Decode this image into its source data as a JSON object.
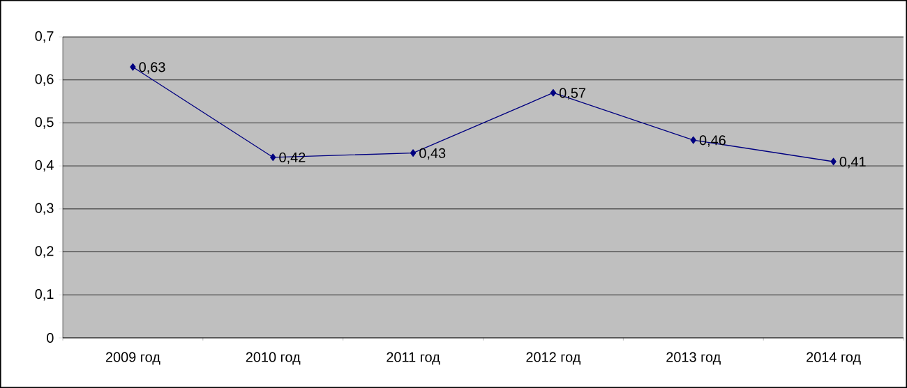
{
  "chart_data": {
    "type": "line",
    "categories": [
      "2009 год",
      "2010 год",
      "2011 год",
      "2012 год",
      "2013 год",
      "2014 год"
    ],
    "values": [
      0.63,
      0.42,
      0.43,
      0.57,
      0.46,
      0.41
    ],
    "value_labels": [
      "0,63",
      "0,42",
      "0,43",
      "0,57",
      "0,46",
      "0,41"
    ],
    "color": "#000080",
    "marker": "diamond",
    "line_style": "solid",
    "ylim": [
      0,
      0.7
    ],
    "yticks": [
      {
        "value": 0,
        "label": "0"
      },
      {
        "value": 0.1,
        "label": "0,1"
      },
      {
        "value": 0.2,
        "label": "0,2"
      },
      {
        "value": 0.3,
        "label": "0,3"
      },
      {
        "value": 0.4,
        "label": "0,4"
      },
      {
        "value": 0.5,
        "label": "0,5"
      },
      {
        "value": 0.6,
        "label": "0,6"
      },
      {
        "value": 0.7,
        "label": "0,7"
      }
    ],
    "grid": "y"
  }
}
